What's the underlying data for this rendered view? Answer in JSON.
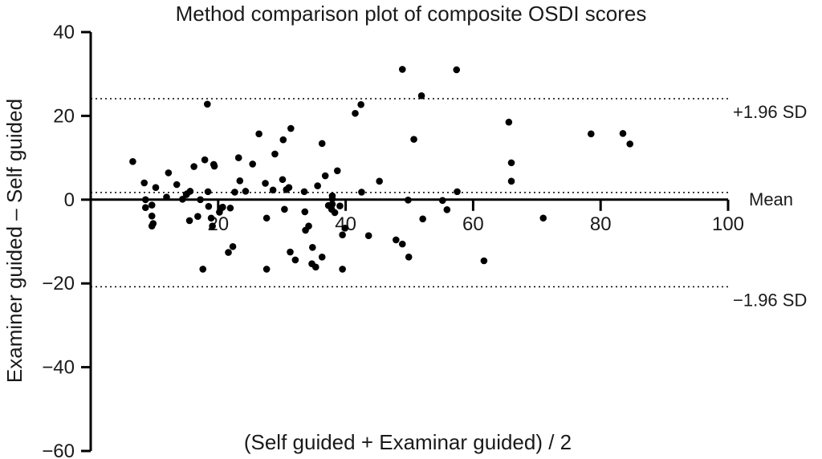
{
  "chart_data": {
    "type": "scatter",
    "title": "Method comparison plot of composite OSDI scores",
    "xlabel": "(Self guided + Examinar guided) / 2",
    "ylabel": "Examiner guided – Self guided",
    "xlim": [
      0,
      100
    ],
    "ylim": [
      -60,
      40
    ],
    "x_ticks": [
      20,
      40,
      60,
      80,
      100
    ],
    "y_ticks": [
      40,
      20,
      0,
      -20,
      -40,
      -60
    ],
    "x_tick_labels": [
      "20",
      "40",
      "60",
      "80",
      "100"
    ],
    "y_tick_labels": [
      "40",
      "20",
      "0",
      "−20",
      "−40",
      "−60"
    ],
    "grid": false,
    "reference_lines": [
      {
        "label": "+1.96 SD",
        "y": 24.1
      },
      {
        "label": "Mean",
        "y": 1.7
      },
      {
        "label": "−1.96 SD",
        "y": -20.8
      }
    ],
    "points": [
      [
        6.6,
        9.1
      ],
      [
        8.4,
        4.0
      ],
      [
        8.6,
        0.0
      ],
      [
        8.6,
        -1.9
      ],
      [
        9.6,
        -1.3
      ],
      [
        9.6,
        -3.9
      ],
      [
        9.8,
        -5.7
      ],
      [
        9.6,
        -6.3
      ],
      [
        10.2,
        2.9
      ],
      [
        11.9,
        0.6
      ],
      [
        12.2,
        6.4
      ],
      [
        13.5,
        3.6
      ],
      [
        14.4,
        0.1
      ],
      [
        15.0,
        1.2
      ],
      [
        15.1,
        1.4
      ],
      [
        15.6,
        2.0
      ],
      [
        15.5,
        -5.0
      ],
      [
        16.2,
        7.9
      ],
      [
        16.8,
        -4.0
      ],
      [
        17.2,
        0.0
      ],
      [
        17.6,
        -16.6
      ],
      [
        17.9,
        9.5
      ],
      [
        18.3,
        22.8
      ],
      [
        18.4,
        1.9
      ],
      [
        18.5,
        -1.6
      ],
      [
        18.9,
        -4.4
      ],
      [
        19.3,
        8.4
      ],
      [
        19.4,
        8.0
      ],
      [
        19.1,
        -6.3
      ],
      [
        20.2,
        -3.0
      ],
      [
        20.5,
        -2.0
      ],
      [
        20.7,
        -1.8
      ],
      [
        21.6,
        -12.6
      ],
      [
        21.9,
        -2.0
      ],
      [
        22.3,
        -11.2
      ],
      [
        22.6,
        1.8
      ],
      [
        23.2,
        10.0
      ],
      [
        23.4,
        4.5
      ],
      [
        24.3,
        2.0
      ],
      [
        25.4,
        8.5
      ],
      [
        26.4,
        15.7
      ],
      [
        27.4,
        3.9
      ],
      [
        27.6,
        -4.4
      ],
      [
        27.6,
        -16.6
      ],
      [
        28.6,
        2.3
      ],
      [
        28.9,
        10.9
      ],
      [
        30.2,
        14.3
      ],
      [
        30.1,
        4.8
      ],
      [
        30.4,
        -2.3
      ],
      [
        30.7,
        2.4
      ],
      [
        31.1,
        2.9
      ],
      [
        31.3,
        -12.5
      ],
      [
        31.4,
        17.0
      ],
      [
        32.1,
        -14.4
      ],
      [
        33.5,
        1.9
      ],
      [
        33.6,
        -2.9
      ],
      [
        33.7,
        -7.3
      ],
      [
        34.2,
        -6.3
      ],
      [
        34.8,
        -11.4
      ],
      [
        34.7,
        -15.3
      ],
      [
        35.3,
        -16.1
      ],
      [
        35.6,
        3.3
      ],
      [
        36.3,
        13.4
      ],
      [
        36.3,
        -13.7
      ],
      [
        36.8,
        5.7
      ],
      [
        37.3,
        -1.4
      ],
      [
        37.8,
        -2.3
      ],
      [
        37.9,
        0.2
      ],
      [
        37.9,
        -1.1
      ],
      [
        37.9,
        0.9
      ],
      [
        38.3,
        -3.1
      ],
      [
        38.7,
        6.9
      ],
      [
        39.1,
        -1.5
      ],
      [
        39.5,
        -8.4
      ],
      [
        39.5,
        -16.6
      ],
      [
        39.9,
        -6.8
      ],
      [
        41.5,
        20.6
      ],
      [
        42.4,
        22.7
      ],
      [
        42.5,
        1.8
      ],
      [
        43.6,
        -8.6
      ],
      [
        45.3,
        4.4
      ],
      [
        47.9,
        -9.6
      ],
      [
        48.9,
        31.1
      ],
      [
        48.9,
        -10.6
      ],
      [
        49.8,
        -0.1
      ],
      [
        49.9,
        -13.7
      ],
      [
        50.7,
        14.4
      ],
      [
        51.9,
        24.8
      ],
      [
        52.1,
        -4.6
      ],
      [
        55.2,
        -0.2
      ],
      [
        55.9,
        -2.4
      ],
      [
        57.4,
        31.0
      ],
      [
        57.5,
        1.9
      ],
      [
        61.7,
        -14.6
      ],
      [
        65.6,
        18.5
      ],
      [
        66.0,
        8.8
      ],
      [
        66.0,
        4.4
      ],
      [
        71.0,
        -4.4
      ],
      [
        78.5,
        15.7
      ],
      [
        83.5,
        15.8
      ],
      [
        84.6,
        13.3
      ]
    ]
  }
}
